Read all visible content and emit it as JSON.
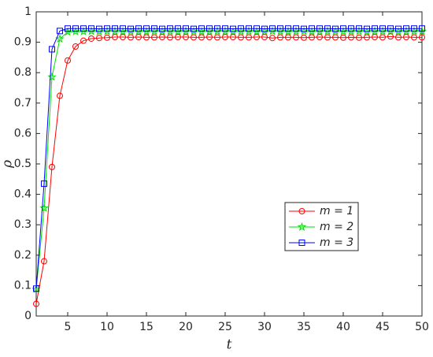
{
  "chart_data": {
    "type": "line",
    "x_label": "t",
    "y_label": "ρ",
    "x": [
      1,
      2,
      3,
      4,
      5,
      6,
      7,
      8,
      9,
      10,
      11,
      12,
      13,
      14,
      15,
      16,
      17,
      18,
      19,
      20,
      21,
      22,
      23,
      24,
      25,
      26,
      27,
      28,
      29,
      30,
      31,
      32,
      33,
      34,
      35,
      36,
      37,
      38,
      39,
      40,
      41,
      42,
      43,
      44,
      45,
      46,
      47,
      48,
      49,
      50
    ],
    "series": [
      {
        "name": "m = 1",
        "color": "#ff0000",
        "marker": "circle",
        "values": [
          0.04,
          0.18,
          0.49,
          0.724,
          0.84,
          0.886,
          0.905,
          0.912,
          0.914,
          0.915,
          0.917,
          0.917,
          0.916,
          0.917,
          0.916,
          0.916,
          0.917,
          0.916,
          0.917,
          0.917,
          0.916,
          0.916,
          0.917,
          0.916,
          0.917,
          0.917,
          0.916,
          0.916,
          0.917,
          0.917,
          0.914,
          0.916,
          0.916,
          0.916,
          0.915,
          0.916,
          0.917,
          0.916,
          0.916,
          0.915,
          0.916,
          0.915,
          0.916,
          0.917,
          0.916,
          0.919,
          0.916,
          0.917,
          0.916,
          0.916
        ]
      },
      {
        "name": "m = 2",
        "color": "#00e000",
        "marker": "star",
        "values": [
          0.088,
          0.355,
          0.786,
          0.911,
          0.934,
          0.935,
          0.935,
          0.936,
          0.935,
          0.936,
          0.936,
          0.935,
          0.936,
          0.936,
          0.935,
          0.936,
          0.936,
          0.936,
          0.935,
          0.936,
          0.936,
          0.935,
          0.936,
          0.936,
          0.936,
          0.935,
          0.936,
          0.936,
          0.935,
          0.936,
          0.936,
          0.936,
          0.935,
          0.936,
          0.936,
          0.935,
          0.936,
          0.936,
          0.936,
          0.935,
          0.936,
          0.936,
          0.935,
          0.936,
          0.936,
          0.936,
          0.935,
          0.936,
          0.936,
          0.936
        ]
      },
      {
        "name": "m = 3",
        "color": "#0000ff",
        "marker": "square",
        "values": [
          0.09,
          0.435,
          0.877,
          0.937,
          0.945,
          0.945,
          0.945,
          0.945,
          0.944,
          0.945,
          0.945,
          0.945,
          0.944,
          0.945,
          0.945,
          0.945,
          0.944,
          0.945,
          0.945,
          0.945,
          0.944,
          0.945,
          0.945,
          0.945,
          0.945,
          0.944,
          0.945,
          0.945,
          0.945,
          0.944,
          0.945,
          0.945,
          0.945,
          0.945,
          0.944,
          0.945,
          0.945,
          0.945,
          0.944,
          0.945,
          0.945,
          0.945,
          0.944,
          0.945,
          0.945,
          0.945,
          0.944,
          0.945,
          0.945,
          0.945
        ]
      }
    ],
    "xlim": [
      1,
      50
    ],
    "xticks": [
      5,
      10,
      15,
      20,
      25,
      30,
      35,
      40,
      45,
      50
    ],
    "ylim": [
      0,
      1
    ],
    "yticks": [
      0,
      0.1,
      0.2,
      0.3,
      0.4,
      0.5,
      0.6,
      0.7,
      0.8,
      0.9,
      1
    ]
  }
}
